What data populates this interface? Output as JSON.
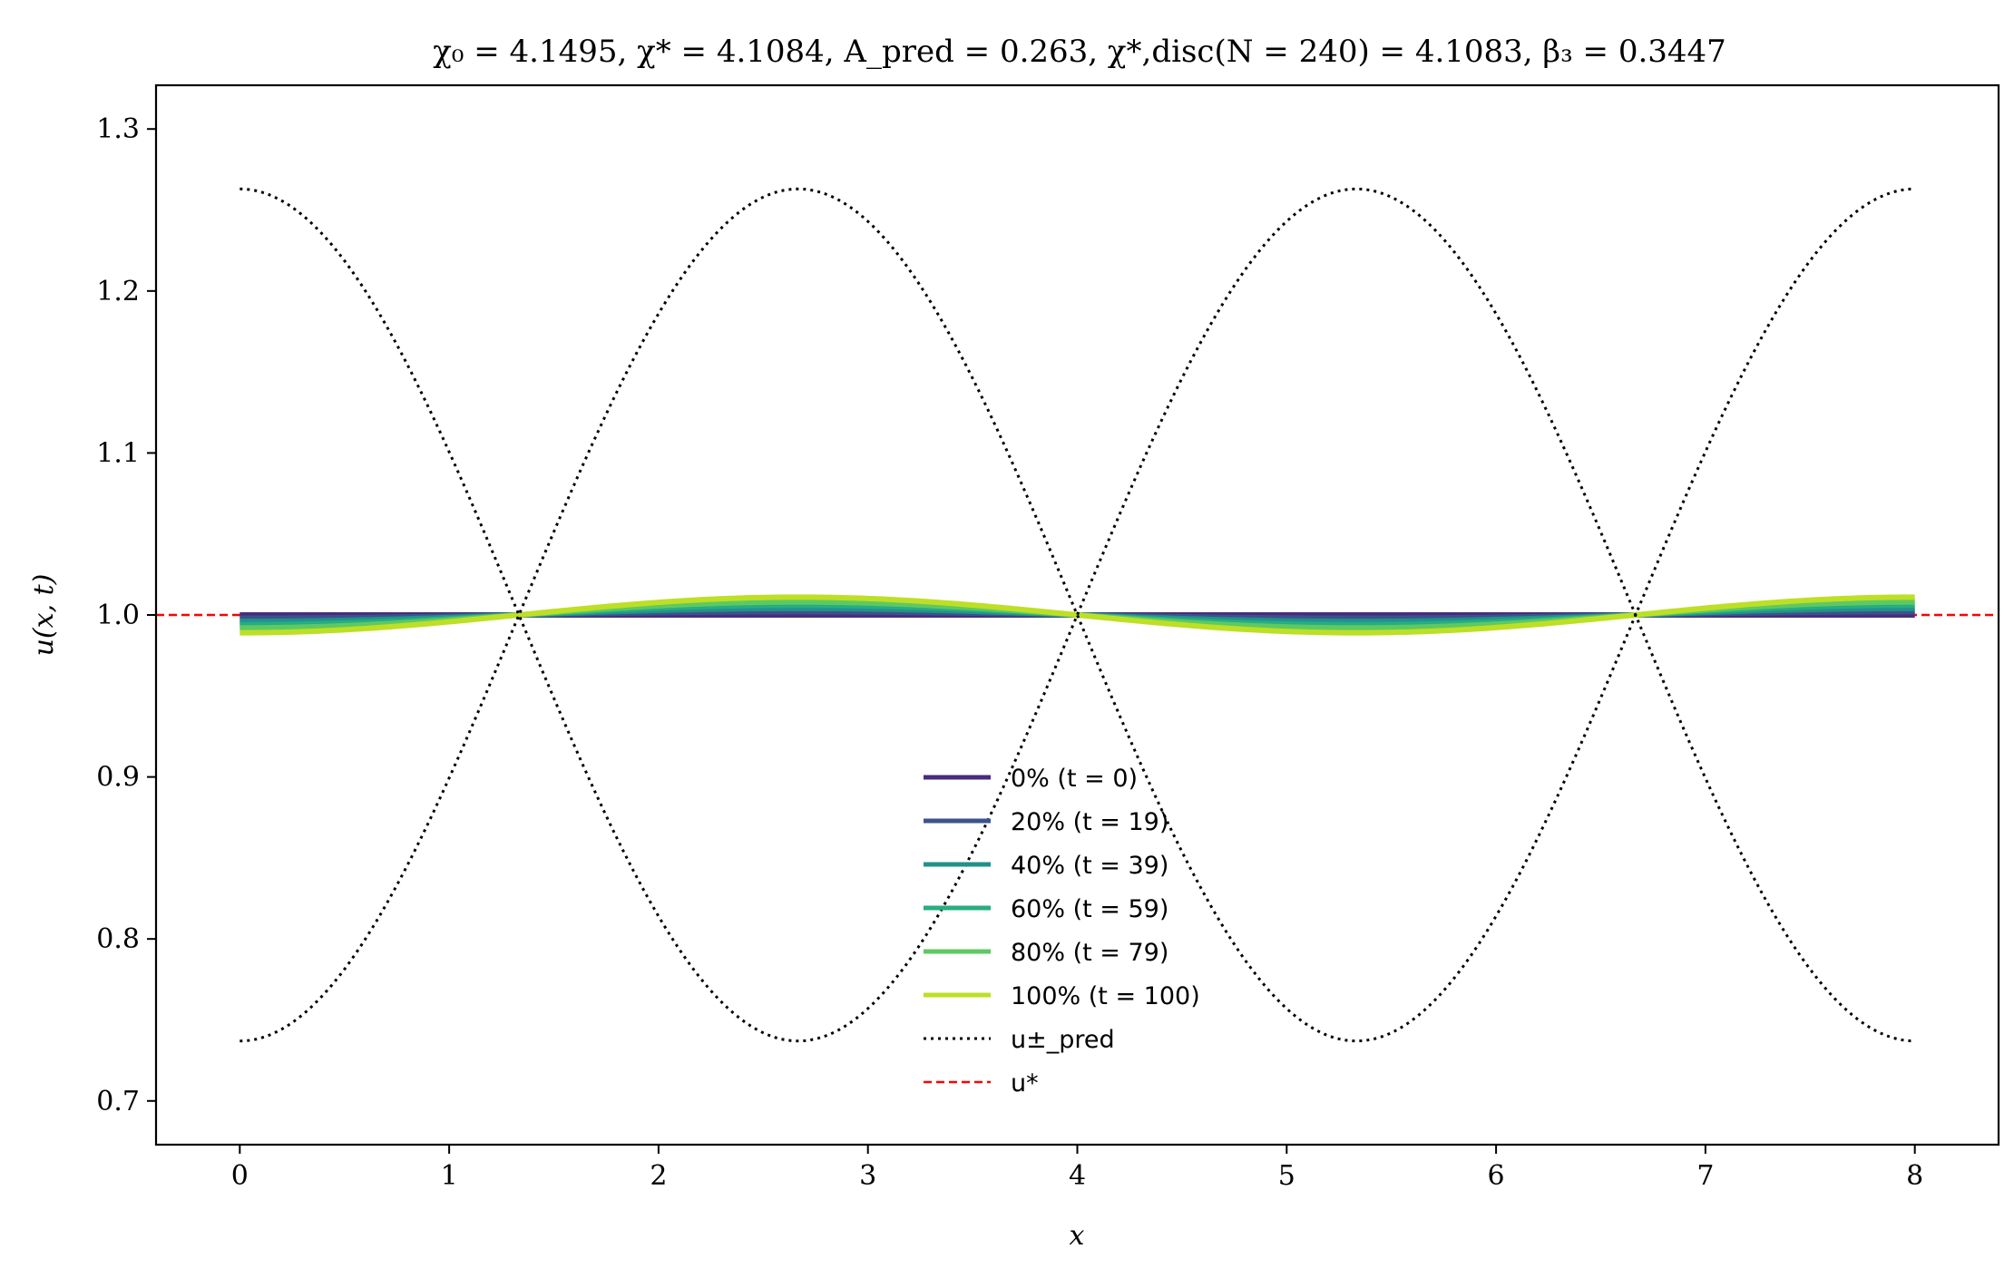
{
  "chart_data": {
    "type": "line",
    "title": "χ₀ = 4.1495,  χ* = 4.1084,  A_pred = 0.263,  χ*,disc(N = 240) = 4.1083,  β₃ = 0.3447",
    "xlabel": "x",
    "ylabel": "u(x, t)",
    "xlim": [
      -0.4,
      8.4
    ],
    "ylim": [
      0.673,
      1.327
    ],
    "xticks": [
      0,
      1,
      2,
      3,
      4,
      5,
      6,
      7,
      8
    ],
    "yticks": [
      0.7,
      0.8,
      0.9,
      1.0,
      1.1,
      1.2,
      1.3
    ],
    "xtick_labels": [
      "0",
      "1",
      "2",
      "3",
      "4",
      "5",
      "6",
      "7",
      "8"
    ],
    "ytick_labels": [
      "0.7",
      "0.8",
      "0.9",
      "1.0",
      "1.1",
      "1.2",
      "1.3"
    ],
    "grid": false,
    "legend_position": "lower-center",
    "x_start": 0,
    "x_end": 8,
    "period": 5.333,
    "series": [
      {
        "name": "0% (t = 0)",
        "amplitude": 0.0,
        "color": "#472d7b",
        "style": "solid"
      },
      {
        "name": "20% (t = 19)",
        "amplitude": 0.002,
        "color": "#3b528b",
        "style": "solid"
      },
      {
        "name": "40% (t = 39)",
        "amplitude": 0.004,
        "color": "#21918c",
        "style": "solid"
      },
      {
        "name": "60% (t = 59)",
        "amplitude": 0.006,
        "color": "#27ad81",
        "style": "solid"
      },
      {
        "name": "80% (t = 79)",
        "amplitude": 0.008,
        "color": "#5ec962",
        "style": "solid"
      },
      {
        "name": "100% (t = 100)",
        "amplitude": 0.011,
        "color": "#bddf26",
        "style": "solid"
      }
    ],
    "envelope": {
      "name": "u±_pred",
      "center": 1.0,
      "amplitude": 0.263,
      "color": "#000000",
      "style": "dotted"
    },
    "reference": {
      "name": "u*",
      "value": 1.0,
      "color": "#ff0000",
      "style": "dashed"
    }
  }
}
